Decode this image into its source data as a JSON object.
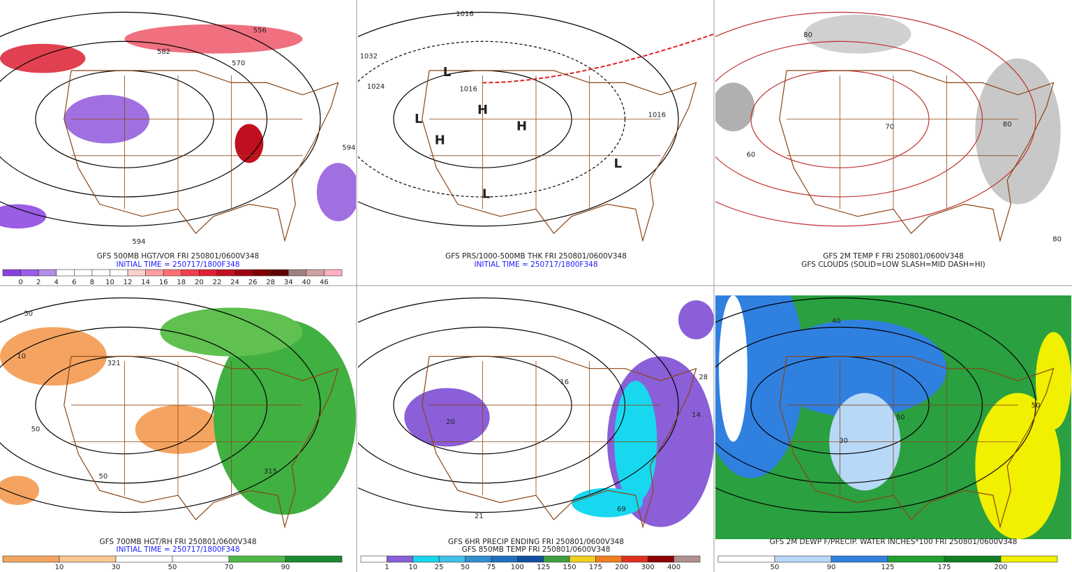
{
  "panels": [
    {
      "labels": [
        "556",
        "582",
        "570",
        "594",
        "594"
      ],
      "caption": [
        "GFS 500MB HGT/VOR FRI 250801/0600V348",
        "INITIAL TIME = 250717/1800F348"
      ],
      "colorbar": {
        "colors": [
          "#8b3fe0",
          "#9b5de5",
          "#b48ee8",
          "#ffffff",
          "#ffffff",
          "#ffffff",
          "#ffffff",
          "#ffd0d0",
          "#ffa0a0",
          "#ff7070",
          "#f04050",
          "#e02030",
          "#c01020",
          "#a00010",
          "#800000",
          "#600000",
          "#a08080",
          "#d0a0a0",
          "#ffb0c0"
        ],
        "labels": [
          "0",
          "2",
          "4",
          "6",
          "8",
          "10",
          "12",
          "14",
          "16",
          "18",
          "20",
          "22",
          "24",
          "26",
          "28",
          "34",
          "40",
          "46"
        ]
      }
    },
    {
      "labels": [
        "1016",
        "1032",
        "1024",
        "1016",
        "1016",
        "L",
        "L",
        "L",
        "H",
        "H",
        "H",
        "L"
      ],
      "caption": [
        "GFS PRS/1000-500MB THK FRI 250801/0600V348",
        "INITIAL TIME = 250717/1800F348"
      ]
    },
    {
      "labels": [
        "80",
        "70",
        "60",
        "80",
        "80"
      ],
      "caption": [
        "GFS 2M TEMP F FRI 250801/0600V348",
        "GFS CLOUDS (SOLID=LOW SLASH=MID DASH=HI)"
      ]
    },
    {
      "labels": [
        "50",
        "10",
        "321",
        "50",
        "50",
        "315"
      ],
      "caption": [
        "GFS 700MB HGT/RH FRI 250801/0600V348",
        "INITIAL TIME = 250717/1800F348"
      ],
      "colorbar": {
        "colors": [
          "#f4a460",
          "#f8c890",
          "#ffffff",
          "#ffffff",
          "#50b848",
          "#1a8a2e"
        ],
        "labels": [
          "10",
          "30",
          "50",
          "70",
          "90"
        ]
      }
    },
    {
      "labels": [
        "20",
        "16",
        "21",
        "14",
        "28",
        "69"
      ],
      "caption": [
        "GFS 6HR PRECIP ENDING FRI 250801/0600V348",
        "GFS 850MB TEMP FRI 250801/0600V348"
      ],
      "colorbar": {
        "colors": [
          "#ffffff",
          "#8a5fd8",
          "#18d8f0",
          "#40c0e8",
          "#3090d0",
          "#2070c0",
          "#1050a0",
          "#40a040",
          "#f0d020",
          "#f08020",
          "#e03020",
          "#900000",
          "#b09090"
        ],
        "labels": [
          "1",
          "10",
          "25",
          "50",
          "75",
          "100",
          "125",
          "150",
          "175",
          "200",
          "300",
          "400"
        ]
      }
    },
    {
      "labels": [
        "40",
        "50",
        "30",
        "50"
      ],
      "caption": [
        "GFS 2M DEWP F/PRECIP. WATER INCHES*100 FRI 250801/0600V348"
      ],
      "colorbar": {
        "colors": [
          "#ffffff",
          "#b8d8f8",
          "#3080e0",
          "#20a030",
          "#108020",
          "#f0f000"
        ],
        "labels": [
          "50",
          "90",
          "125",
          "175",
          "200"
        ]
      }
    }
  ]
}
